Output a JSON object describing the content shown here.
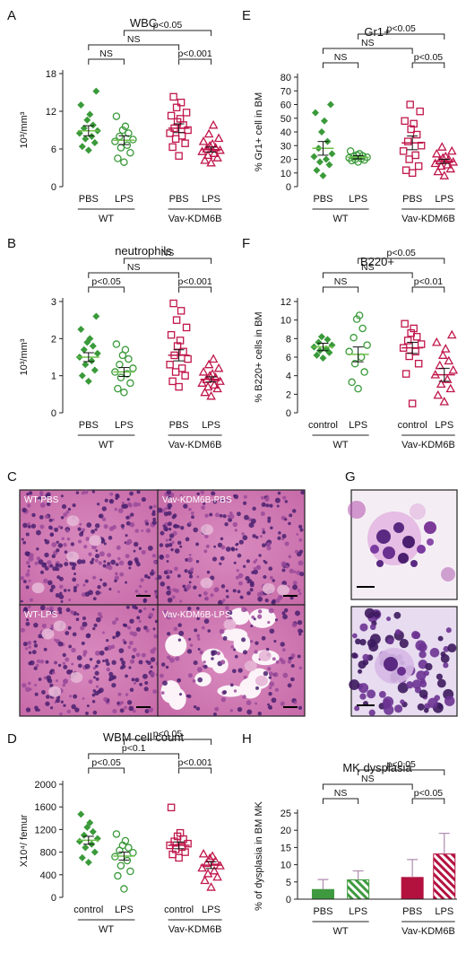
{
  "colors": {
    "wt": "#3a9a3a",
    "wt_mean": "#6fbf4a",
    "vav": "#c0174a",
    "vav_mean": "#c0174a",
    "bar_wt": "#3f9a3f",
    "bar_vav": "#b3123f",
    "micro_pink": "#e7b3cf",
    "micro_purple": "#6a2a8c"
  },
  "panels": {
    "A": {
      "letter": "A"
    },
    "B": {
      "letter": "B"
    },
    "C": {
      "letter": "C"
    },
    "D": {
      "letter": "D"
    },
    "E": {
      "letter": "E"
    },
    "F": {
      "letter": "F"
    },
    "G": {
      "letter": "G"
    },
    "H": {
      "letter": "H"
    }
  },
  "micrographs": {
    "wt_pbs": "WT-PBS",
    "vav_pbs": "Vav-KDM6B-PBS",
    "wt_lps": "WT-LPS",
    "vav_lps": "Vav-KDM6B-LPS"
  },
  "chart_data": [
    {
      "id": "A",
      "type": "scatter",
      "title": "WBC",
      "ylabel": "10³/mm³",
      "ylim": [
        0,
        18
      ],
      "yticks": [
        0,
        6,
        12,
        18
      ],
      "groups": [
        {
          "label": "PBS",
          "genotype": "WT",
          "mean": 8.9,
          "sem": 0.8,
          "values": [
            5.8,
            6.4,
            7.0,
            7.6,
            8.0,
            8.5,
            8.9,
            9.3,
            9.8,
            10.6,
            11.5,
            13.0,
            15.2
          ]
        },
        {
          "label": "LPS",
          "genotype": "WT",
          "mean": 7.4,
          "sem": 0.7,
          "values": [
            3.9,
            4.5,
            5.4,
            6.2,
            6.6,
            7.2,
            7.5,
            8.0,
            8.5,
            9.0,
            9.6,
            11.2
          ]
        },
        {
          "label": "PBS",
          "genotype": "Vav-KDM6B",
          "mean": 9.3,
          "sem": 0.7,
          "values": [
            4.9,
            6.3,
            6.9,
            7.6,
            8.1,
            8.5,
            9.0,
            9.3,
            9.8,
            10.3,
            10.8,
            11.3,
            11.8,
            12.6,
            13.4,
            14.3
          ]
        },
        {
          "label": "LPS",
          "genotype": "Vav-KDM6B",
          "mean": 5.9,
          "sem": 0.4,
          "values": [
            3.8,
            4.2,
            4.6,
            5.0,
            5.3,
            5.6,
            5.8,
            6.0,
            6.2,
            6.5,
            6.8,
            7.2,
            7.7,
            8.4,
            9.8
          ]
        }
      ],
      "genotypes": [
        "WT",
        "Vav-KDM6B"
      ],
      "comparisons": [
        {
          "label": "NS",
          "from": 0,
          "to": 1,
          "level": 0
        },
        {
          "label": "p<0.001",
          "from": 2,
          "to": 3,
          "level": 0
        },
        {
          "label": "NS",
          "from": 0,
          "to": 2,
          "level": 1
        },
        {
          "label": "p<0.05",
          "from": 1,
          "to": 3,
          "level": 2
        }
      ]
    },
    {
      "id": "B",
      "type": "scatter",
      "title": "neutrophils",
      "ylabel": "10³/mm³",
      "ylim": [
        0,
        3
      ],
      "yticks": [
        0,
        1,
        2,
        3
      ],
      "groups": [
        {
          "label": "PBS",
          "genotype": "WT",
          "mean": 1.5,
          "sem": 0.12,
          "values": [
            0.85,
            1.0,
            1.15,
            1.3,
            1.4,
            1.5,
            1.6,
            1.7,
            1.8,
            1.9,
            2.0,
            2.25,
            2.6
          ]
        },
        {
          "label": "LPS",
          "genotype": "WT",
          "mean": 1.1,
          "sem": 0.12,
          "values": [
            0.55,
            0.65,
            0.8,
            0.95,
            1.05,
            1.1,
            1.2,
            1.3,
            1.45,
            1.55,
            1.7,
            1.85
          ]
        },
        {
          "label": "PBS",
          "genotype": "Vav-KDM6B",
          "mean": 1.55,
          "sem": 0.15,
          "values": [
            0.7,
            0.85,
            1.0,
            1.1,
            1.2,
            1.3,
            1.45,
            1.55,
            1.65,
            1.8,
            1.95,
            2.1,
            2.3,
            2.5,
            2.75,
            2.95
          ]
        },
        {
          "label": "LPS",
          "genotype": "Vav-KDM6B",
          "mean": 0.9,
          "sem": 0.07,
          "values": [
            0.45,
            0.55,
            0.65,
            0.7,
            0.75,
            0.8,
            0.85,
            0.9,
            0.95,
            1.0,
            1.05,
            1.1,
            1.2,
            1.3,
            1.45
          ]
        }
      ],
      "genotypes": [
        "WT",
        "Vav-KDM6B"
      ],
      "comparisons": [
        {
          "label": "p<0.05",
          "from": 0,
          "to": 1,
          "level": 0
        },
        {
          "label": "p<0.001",
          "from": 2,
          "to": 3,
          "level": 0
        },
        {
          "label": "NS",
          "from": 0,
          "to": 2,
          "level": 1
        },
        {
          "label": "NS",
          "from": 1,
          "to": 3,
          "level": 2
        }
      ]
    },
    {
      "id": "D",
      "type": "scatter",
      "title": "WBM cell count",
      "ylabel": "X10⁴/ femur",
      "ylim": [
        0,
        2000
      ],
      "yticks": [
        0,
        400,
        800,
        1200,
        1600,
        2000
      ],
      "groups": [
        {
          "label": "control",
          "genotype": "WT",
          "mean": 1010,
          "sem": 70,
          "values": [
            620,
            700,
            800,
            880,
            940,
            990,
            1040,
            1100,
            1160,
            1240,
            1320,
            1470
          ]
        },
        {
          "label": "LPS",
          "genotype": "WT",
          "mean": 730,
          "sem": 70,
          "values": [
            150,
            380,
            460,
            560,
            650,
            720,
            790,
            830,
            880,
            920,
            1000,
            1120
          ]
        },
        {
          "label": "control",
          "genotype": "Vav-KDM6B",
          "mean": 920,
          "sem": 60,
          "values": [
            700,
            760,
            800,
            850,
            890,
            920,
            950,
            990,
            1030,
            1080,
            1140,
            1590
          ]
        },
        {
          "label": "LPS",
          "genotype": "Vav-KDM6B",
          "mean": 570,
          "sem": 60,
          "values": [
            180,
            300,
            360,
            420,
            470,
            520,
            560,
            600,
            640,
            690,
            730,
            770
          ]
        }
      ],
      "genotypes": [
        "WT",
        "Vav-KDM6B"
      ],
      "comparisons": [
        {
          "label": "p<0.05",
          "from": 0,
          "to": 1,
          "level": 0
        },
        {
          "label": "p<0.001",
          "from": 2,
          "to": 3,
          "level": 0
        },
        {
          "label": "p<0.1",
          "from": 0,
          "to": 2,
          "level": 1
        },
        {
          "label": "p<0.05",
          "from": 1,
          "to": 3,
          "level": 2
        }
      ]
    },
    {
      "id": "E",
      "type": "scatter",
      "title": "Gr1+",
      "ylabel": "% Gr1+ cell in BM",
      "ylim": [
        0,
        80
      ],
      "yticks": [
        0,
        10,
        20,
        30,
        40,
        50,
        60,
        70,
        80
      ],
      "groups": [
        {
          "label": "PBS",
          "genotype": "WT",
          "mean": 28,
          "sem": 5,
          "values": [
            8,
            12,
            16,
            18,
            20,
            22,
            24,
            28,
            33,
            40,
            48,
            54,
            60
          ]
        },
        {
          "label": "LPS",
          "genotype": "WT",
          "mean": 21.5,
          "sem": 1.2,
          "values": [
            18,
            19,
            19.5,
            20,
            20.5,
            21,
            21.5,
            22,
            22.5,
            23,
            24,
            26
          ]
        },
        {
          "label": "PBS",
          "genotype": "Vav-KDM6B",
          "mean": 32,
          "sem": 5,
          "values": [
            10,
            12,
            15,
            20,
            23,
            26,
            30,
            33,
            38,
            42,
            46,
            48,
            55,
            60
          ]
        },
        {
          "label": "LPS",
          "genotype": "Vav-KDM6B",
          "mean": 18.5,
          "sem": 1.5,
          "values": [
            8,
            11,
            13,
            15,
            16,
            17,
            18,
            19,
            20,
            21,
            22,
            24,
            26,
            29
          ]
        }
      ],
      "genotypes": [
        "WT",
        "Vav-KDM6B"
      ],
      "comparisons": [
        {
          "label": "NS",
          "from": 0,
          "to": 1,
          "level": 0
        },
        {
          "label": "p<0.05",
          "from": 2,
          "to": 3,
          "level": 0
        },
        {
          "label": "NS",
          "from": 0,
          "to": 2,
          "level": 1
        },
        {
          "label": "p<0.05",
          "from": 1,
          "to": 3,
          "level": 2
        }
      ]
    },
    {
      "id": "F",
      "type": "scatter",
      "title": "B220+",
      "ylabel": "% B220+ cells in BM",
      "ylim": [
        0,
        12
      ],
      "yticks": [
        0,
        2,
        4,
        6,
        8,
        10,
        12
      ],
      "groups": [
        {
          "label": "control",
          "genotype": "WT",
          "mean": 7.1,
          "sem": 0.4,
          "values": [
            5.9,
            6.2,
            6.5,
            6.7,
            6.9,
            7.1,
            7.3,
            7.6,
            7.9,
            8.2
          ]
        },
        {
          "label": "LPS",
          "genotype": "WT",
          "mean": 6.3,
          "sem": 0.8,
          "values": [
            2.6,
            3.3,
            4.4,
            5.3,
            6.0,
            6.6,
            7.3,
            8.1,
            9.1,
            10.1,
            10.5
          ]
        },
        {
          "label": "control",
          "genotype": "Vav-KDM6B",
          "mean": 7.0,
          "sem": 0.6,
          "values": [
            1.0,
            4.2,
            5.3,
            6.1,
            6.6,
            7.0,
            7.4,
            7.8,
            8.2,
            8.6,
            9.1,
            9.6
          ]
        },
        {
          "label": "LPS",
          "genotype": "Vav-KDM6B",
          "mean": 4.1,
          "sem": 0.7,
          "values": [
            1.2,
            1.9,
            2.6,
            3.1,
            3.6,
            4.1,
            4.6,
            5.1,
            5.6,
            6.2,
            6.9,
            7.6,
            8.4
          ]
        }
      ],
      "genotypes": [
        "WT",
        "Vav-KDM6B"
      ],
      "comparisons": [
        {
          "label": "NS",
          "from": 0,
          "to": 1,
          "level": 0
        },
        {
          "label": "p<0.01",
          "from": 2,
          "to": 3,
          "level": 0
        },
        {
          "label": "NS",
          "from": 0,
          "to": 2,
          "level": 1
        },
        {
          "label": "p<0.05",
          "from": 1,
          "to": 3,
          "level": 2
        }
      ]
    },
    {
      "id": "H",
      "type": "bar",
      "title": "MK dysplasia",
      "ylabel": "% of dysplasia in BM MK",
      "ylim": [
        0,
        25
      ],
      "yticks": [
        0,
        5,
        10,
        15,
        20,
        25
      ],
      "groups": [
        {
          "label": "PBS",
          "genotype": "WT",
          "mean": 2.8,
          "err": 2.9,
          "hatched": false
        },
        {
          "label": "LPS",
          "genotype": "WT",
          "mean": 5.6,
          "err": 2.6,
          "hatched": true
        },
        {
          "label": "PBS",
          "genotype": "Vav-KDM6B",
          "mean": 6.3,
          "err": 5.2,
          "hatched": false
        },
        {
          "label": "LPS",
          "genotype": "Vav-KDM6B",
          "mean": 13.1,
          "err": 6.0,
          "hatched": true
        }
      ],
      "genotypes": [
        "WT",
        "Vav-KDM6B"
      ],
      "comparisons": [
        {
          "label": "NS",
          "from": 0,
          "to": 1,
          "level": 0
        },
        {
          "label": "p<0.05",
          "from": 2,
          "to": 3,
          "level": 0
        },
        {
          "label": "NS",
          "from": 0,
          "to": 2,
          "level": 1
        },
        {
          "label": "p<0.05",
          "from": 1,
          "to": 3,
          "level": 2
        }
      ]
    }
  ]
}
